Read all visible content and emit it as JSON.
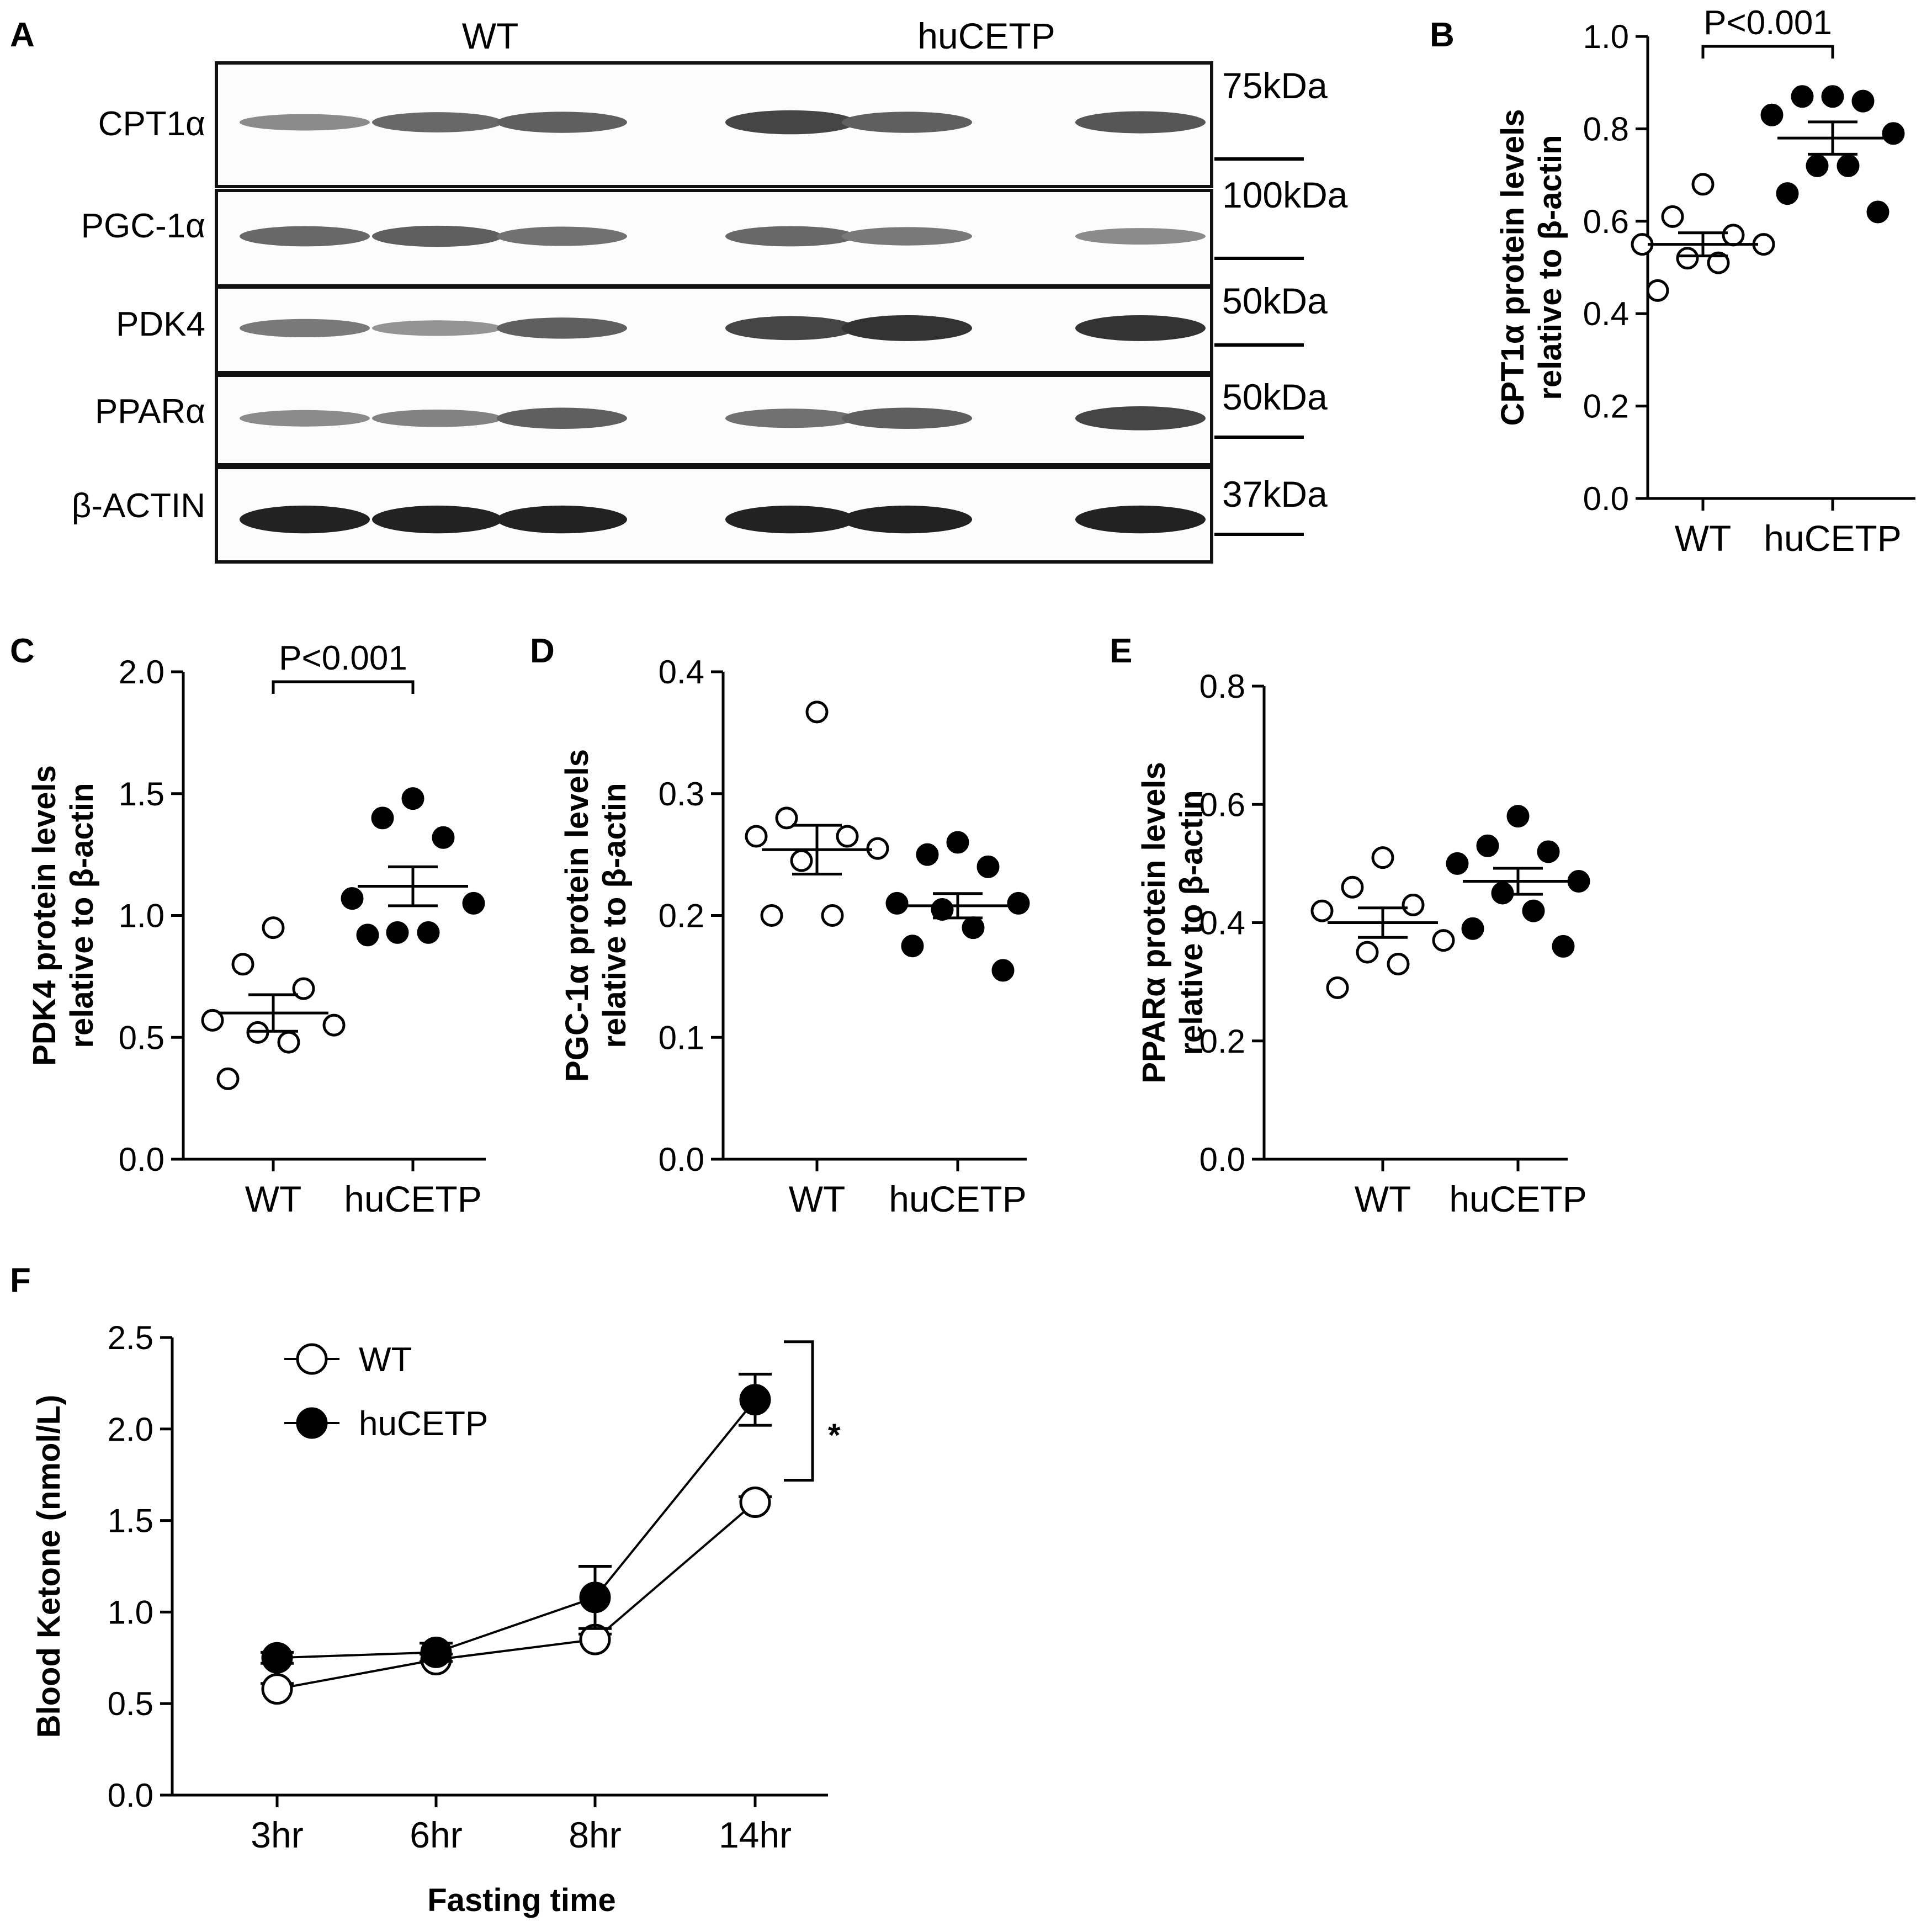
{
  "panel_a": {
    "letter": "A",
    "groups": [
      "WT",
      "huCETP"
    ],
    "blots": [
      {
        "label": "CPT1α",
        "kda": "75kDa",
        "intensity": [
          0.35,
          0.55,
          0.6,
          0.75,
          0.6,
          0.65
        ]
      },
      {
        "label": "PGC-1α",
        "kda": "100kDa",
        "intensity": [
          0.55,
          0.6,
          0.5,
          0.55,
          0.45,
          0.35
        ]
      },
      {
        "label": "PDK4",
        "kda": "50kDa",
        "intensity": [
          0.45,
          0.3,
          0.6,
          0.75,
          0.85,
          0.85
        ]
      },
      {
        "label": "PPARα",
        "kda": "50kDa",
        "intensity": [
          0.35,
          0.4,
          0.6,
          0.5,
          0.6,
          0.75
        ]
      },
      {
        "label": "β-ACTIN",
        "kda": "37kDa",
        "intensity": [
          0.95,
          0.95,
          0.95,
          0.95,
          0.95,
          0.95
        ]
      }
    ]
  },
  "chart_data": [
    {
      "panel": "B",
      "type": "scatter",
      "categories": [
        "WT",
        "huCETP"
      ],
      "ylabel_line1": "CPT1α protein levels",
      "ylabel_line2": "relative to β-actin",
      "ylim": [
        0,
        1.0
      ],
      "yticks": [
        0.0,
        0.2,
        0.4,
        0.6,
        0.8,
        1.0
      ],
      "ytick_labels": [
        "0.0",
        "0.2",
        "0.4",
        "0.6",
        "0.8",
        "1.0"
      ],
      "annotation": "P<0.001",
      "series": [
        {
          "name": "WT",
          "fill": "open",
          "points": [
            0.68,
            0.61,
            0.57,
            0.55,
            0.55,
            0.52,
            0.51,
            0.45
          ],
          "mean": 0.55,
          "sem": 0.025
        },
        {
          "name": "huCETP",
          "fill": "filled",
          "points": [
            0.87,
            0.87,
            0.86,
            0.83,
            0.79,
            0.72,
            0.72,
            0.66,
            0.62
          ],
          "mean": 0.78,
          "sem": 0.035
        }
      ]
    },
    {
      "panel": "C",
      "type": "scatter",
      "categories": [
        "WT",
        "huCETP"
      ],
      "ylabel_line1": "PDK4 protein levels",
      "ylabel_line2": "relative to β-actin",
      "ylim": [
        0,
        2.0
      ],
      "yticks": [
        0.0,
        0.5,
        1.0,
        1.5,
        2.0
      ],
      "ytick_labels": [
        "0.0",
        "0.5",
        "1.0",
        "1.5",
        "2.0"
      ],
      "annotation": "P<0.001",
      "series": [
        {
          "name": "WT",
          "fill": "open",
          "points": [
            0.95,
            0.8,
            0.7,
            0.57,
            0.55,
            0.52,
            0.48,
            0.33
          ],
          "mean": 0.6,
          "sem": 0.075
        },
        {
          "name": "huCETP",
          "fill": "filled",
          "points": [
            1.48,
            1.4,
            1.32,
            1.07,
            1.05,
            0.93,
            0.93,
            0.92
          ],
          "mean": 1.12,
          "sem": 0.08
        }
      ]
    },
    {
      "panel": "D",
      "type": "scatter",
      "categories": [
        "WT",
        "huCETP"
      ],
      "ylabel_line1": "PGC-1α protein levels",
      "ylabel_line2": "relative to β-actin",
      "ylim": [
        0,
        0.4
      ],
      "yticks": [
        0.0,
        0.1,
        0.2,
        0.3,
        0.4
      ],
      "ytick_labels": [
        "0.0",
        "0.1",
        "0.2",
        "0.3",
        "0.4"
      ],
      "annotation": "",
      "series": [
        {
          "name": "WT",
          "fill": "open",
          "points": [
            0.367,
            0.28,
            0.265,
            0.265,
            0.255,
            0.245,
            0.2,
            0.2
          ],
          "mean": 0.254,
          "sem": 0.02
        },
        {
          "name": "huCETP",
          "fill": "filled",
          "points": [
            0.26,
            0.25,
            0.24,
            0.21,
            0.21,
            0.205,
            0.19,
            0.175,
            0.155
          ],
          "mean": 0.208,
          "sem": 0.01
        }
      ]
    },
    {
      "panel": "E",
      "type": "scatter",
      "categories": [
        "WT",
        "huCETP"
      ],
      "ylabel_line1": "PPARα protein levels",
      "ylabel_line2": "relative to β-actin",
      "ylim": [
        0,
        0.8
      ],
      "yticks": [
        0.0,
        0.2,
        0.4,
        0.6,
        0.8
      ],
      "ytick_labels": [
        "0.0",
        "0.2",
        "0.4",
        "0.6",
        "0.8"
      ],
      "annotation": "",
      "series": [
        {
          "name": "WT",
          "fill": "open",
          "points": [
            0.51,
            0.46,
            0.43,
            0.42,
            0.37,
            0.35,
            0.33,
            0.29
          ],
          "mean": 0.4,
          "sem": 0.025
        },
        {
          "name": "huCETP",
          "fill": "filled",
          "points": [
            0.58,
            0.53,
            0.52,
            0.5,
            0.47,
            0.45,
            0.42,
            0.39,
            0.36
          ],
          "mean": 0.47,
          "sem": 0.022
        }
      ]
    },
    {
      "panel": "F",
      "type": "line",
      "x": [
        "3hr",
        "6hr",
        "8hr",
        "14hr"
      ],
      "xlabel": "Fasting time",
      "ylabel": "Blood Ketone (nmol/L)",
      "ylim": [
        0,
        2.5
      ],
      "yticks": [
        0.0,
        0.5,
        1.0,
        1.5,
        2.0,
        2.5
      ],
      "ytick_labels": [
        "0.0",
        "0.5",
        "1.0",
        "1.5",
        "2.0",
        "2.5"
      ],
      "annotation": "*",
      "series": [
        {
          "name": "WT",
          "fill": "open",
          "values": [
            0.58,
            0.74,
            0.85,
            1.6
          ],
          "err": [
            0.03,
            0.03,
            0.03,
            0.03
          ]
        },
        {
          "name": "huCETP",
          "fill": "filled",
          "values": [
            0.75,
            0.78,
            1.08,
            2.16
          ],
          "err": [
            0.03,
            0.05,
            0.17,
            0.14
          ]
        }
      ]
    }
  ]
}
